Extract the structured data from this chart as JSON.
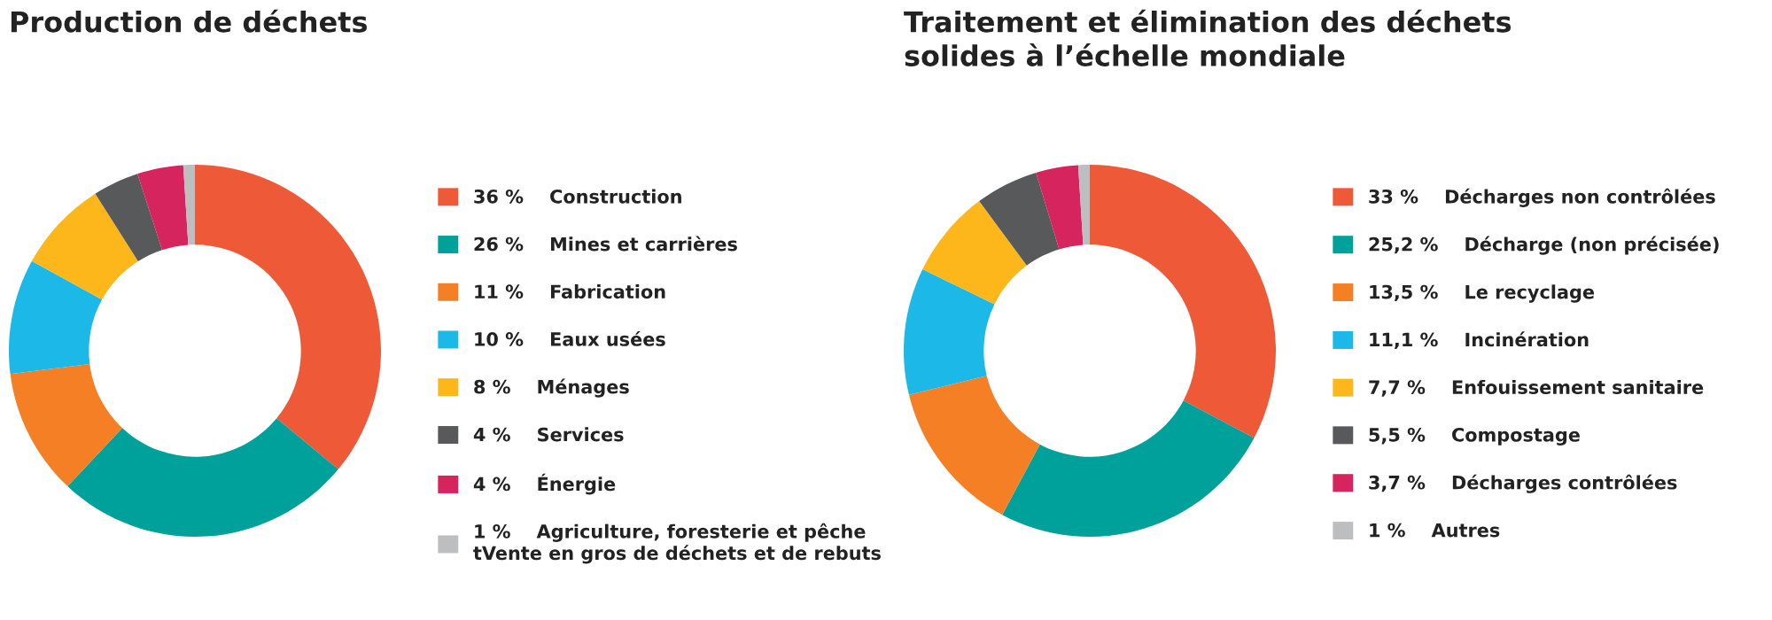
{
  "chart_data": [
    {
      "type": "donut",
      "title": "Production de déchets",
      "legend": "right",
      "categories": [
        "Construction",
        "Mines et carrières",
        "Fabrication",
        "Eaux usées",
        "Ménages",
        "Services",
        "Énergie",
        "Agriculture, foresterie et pêche\ntVente en gros de déchets et de rebuts"
      ],
      "values": [
        36,
        26,
        11,
        10,
        8,
        4,
        4,
        1
      ],
      "value_labels": [
        "36 %",
        "26 %",
        "11 %",
        "10 %",
        "8 %",
        "4 %",
        "4 %",
        "1 %"
      ],
      "colors": [
        "#ee5a37",
        "#00a19a",
        "#f47f24",
        "#1cb9e8",
        "#fdb71a",
        "#58595b",
        "#d6245e",
        "#bcbec0"
      ]
    },
    {
      "type": "donut",
      "title": "Traitement et élimination des déchets\nsolides à l’échelle mondiale",
      "legend": "right",
      "categories": [
        "Décharges non contrôlées",
        "Décharge (non précisée)",
        "Le recyclage",
        "Incinération",
        "Enfouissement sanitaire",
        "Compostage",
        "Décharges contrôlées",
        "Autres"
      ],
      "values": [
        33,
        25.2,
        13.5,
        11.1,
        7.7,
        5.5,
        3.7,
        1
      ],
      "value_labels": [
        "33 %",
        "25,2 %",
        "13,5 %",
        "11,1 %",
        "7,7 %",
        "5,5 %",
        "3,7 %",
        "1 %"
      ],
      "colors": [
        "#ee5a37",
        "#00a19a",
        "#f47f24",
        "#1cb9e8",
        "#fdb71a",
        "#58595b",
        "#d6245e",
        "#bcbec0"
      ]
    }
  ]
}
